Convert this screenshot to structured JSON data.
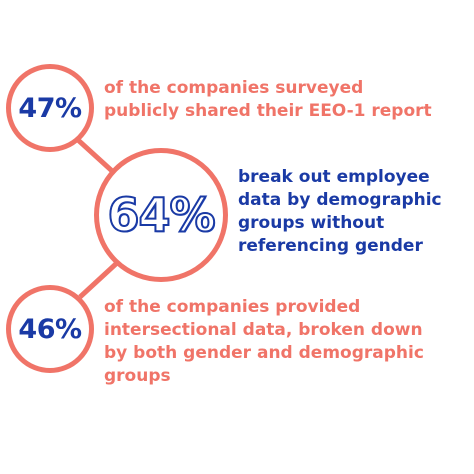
{
  "colors": {
    "coral": "#f07468",
    "blue": "#1a3aa5"
  },
  "stats": [
    {
      "value": "47%",
      "lines": [
        "of the companies surveyed",
        "publicly shared their EEO-1 report"
      ]
    },
    {
      "value": "64%",
      "lines": [
        "break out employee",
        "data by demographic",
        "groups without",
        "referencing gender"
      ]
    },
    {
      "value": "46%",
      "lines": [
        "of the companies provided",
        "intersectional data, broken down",
        "by both gender and demographic",
        "groups"
      ]
    }
  ]
}
